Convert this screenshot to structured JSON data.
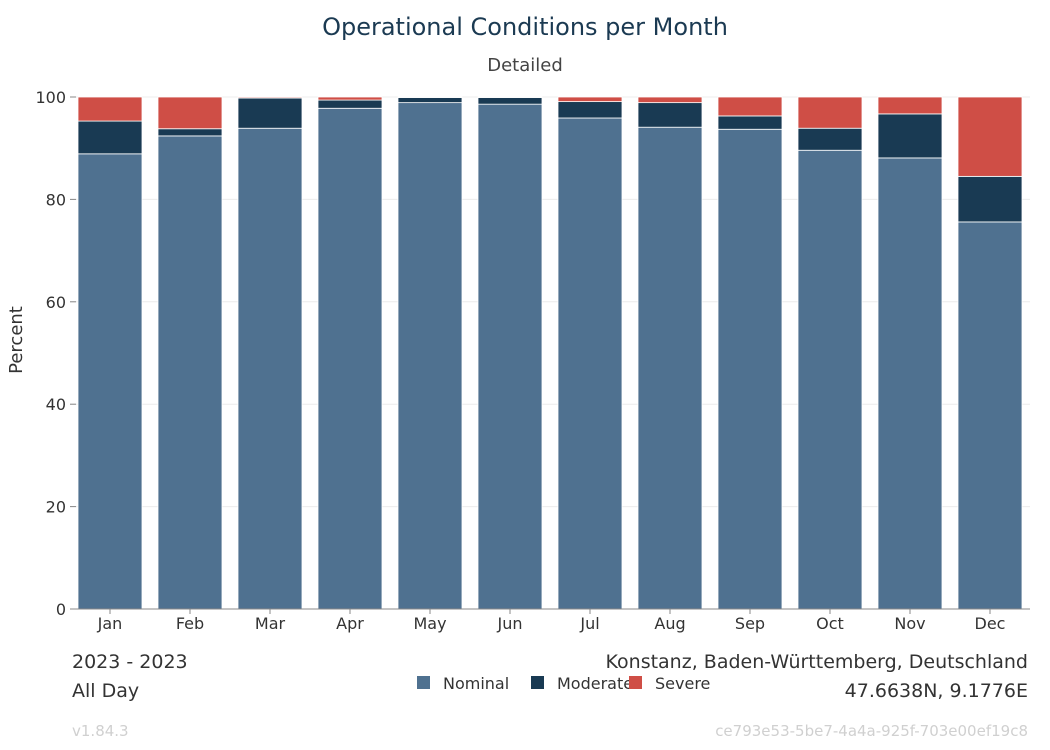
{
  "chart_data": {
    "type": "bar",
    "stacked": true,
    "title": "Operational Conditions per Month",
    "subtitle": "Detailed",
    "xlabel": "",
    "ylabel": "Percent",
    "ylim": [
      0,
      100
    ],
    "yticks": [
      0,
      20,
      40,
      60,
      80,
      100
    ],
    "grid": true,
    "legend_position": "bottom",
    "categories": [
      "Jan",
      "Feb",
      "Mar",
      "Apr",
      "May",
      "Jun",
      "Jul",
      "Aug",
      "Sep",
      "Oct",
      "Nov",
      "Dec"
    ],
    "series": [
      {
        "name": "Nominal",
        "color": "#4f7190",
        "values": [
          88.9,
          92.4,
          93.9,
          97.8,
          98.9,
          98.6,
          95.9,
          94.1,
          93.7,
          89.6,
          88.1,
          75.6
        ]
      },
      {
        "name": "Moderate",
        "color": "#193a53",
        "values": [
          6.4,
          1.4,
          5.9,
          1.6,
          1.0,
          1.3,
          3.2,
          4.8,
          2.6,
          4.3,
          8.6,
          8.9
        ]
      },
      {
        "name": "Severe",
        "color": "#cf4e46",
        "values": [
          4.7,
          6.2,
          0.2,
          0.6,
          0.1,
          0.1,
          0.9,
          1.1,
          3.7,
          6.1,
          3.3,
          15.5
        ]
      }
    ]
  },
  "footer": {
    "period": "2023 - 2023",
    "time_of_day": "All Day",
    "location": "Konstanz, Baden-Württemberg, Deutschland",
    "coordinates": "47.6638N, 9.1776E",
    "version": "v1.84.3",
    "id": "ce793e53-5be7-4a4a-925f-703e00ef19c8"
  }
}
